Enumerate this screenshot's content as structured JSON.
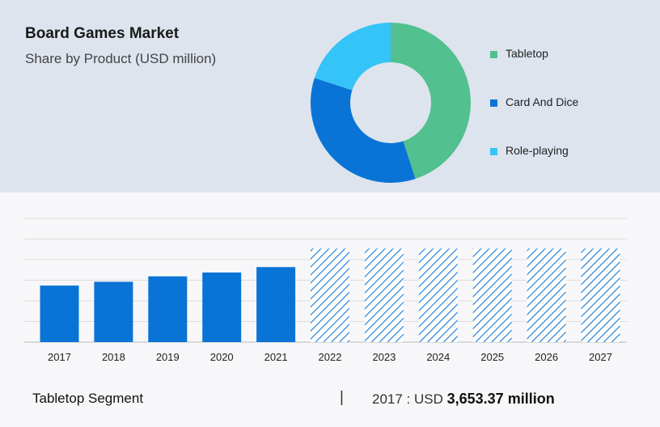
{
  "header": {
    "title": "Board Games Market",
    "subtitle": "Share by Product (USD million)"
  },
  "colors": {
    "tabletop": "#52c08f",
    "card_and_dice": "#0a74d6",
    "role_playing": "#35c4f7",
    "bar": "#0a74d6",
    "hatch": "#1478d4"
  },
  "chart_data": [
    {
      "type": "pie",
      "donut": true,
      "categories": [
        "Tabletop",
        "Card And Dice",
        "Role-playing"
      ],
      "values": [
        45,
        35,
        20
      ],
      "legend": "right"
    },
    {
      "type": "bar",
      "categories": [
        "2017",
        "2018",
        "2019",
        "2020",
        "2021",
        "2022",
        "2023",
        "2024",
        "2025",
        "2026",
        "2027"
      ],
      "values": [
        3653.37,
        3900,
        4250,
        4500,
        4850,
        6050,
        6050,
        6050,
        6050,
        6050,
        6050
      ],
      "forecast_from": "2022",
      "ylim": [
        0,
        8000
      ],
      "grid": true
    }
  ],
  "footer": {
    "segment": "Tabletop Segment",
    "separator": "|",
    "value_prefix": "2017 : USD",
    "value_amount": "3,653.37 million"
  }
}
